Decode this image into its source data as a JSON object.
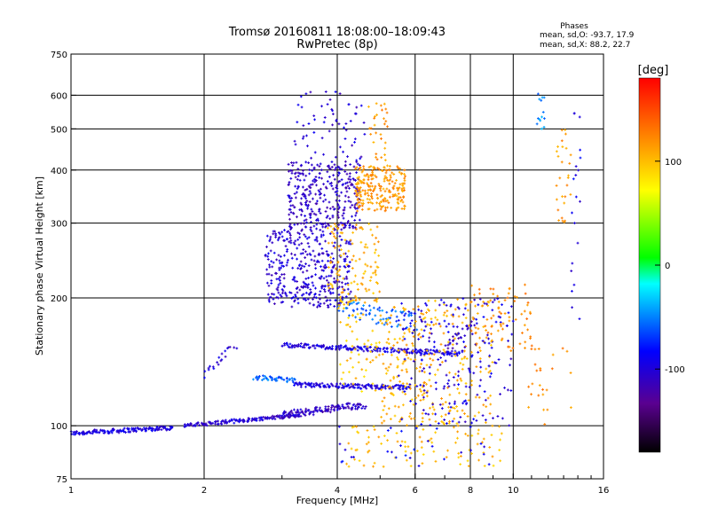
{
  "chart_data": {
    "type": "scatter",
    "title": "Tromsø 20160811 18:08:00–18:09:43",
    "subtitle": "RwPretec (8p)",
    "phases_title": "Phases",
    "phases_lines": [
      "mean, sd,O: -93.7, 17.9",
      "mean, sd,X:  88.2, 22.7"
    ],
    "xlabel": "Frequency [MHz]",
    "ylabel": "Stationary phase Virtual Height [km]",
    "xscale": "log",
    "yscale": "log",
    "xlim": [
      1,
      16
    ],
    "ylim": [
      75,
      750
    ],
    "xticks": [
      1,
      2,
      4,
      6,
      8,
      10,
      16
    ],
    "xtick_labels": [
      "1",
      "2",
      "4",
      "6",
      "8",
      "10",
      "16"
    ],
    "yticks": [
      75,
      100,
      200,
      300,
      400,
      500,
      600,
      750
    ],
    "ytick_labels": [
      "75",
      "100",
      "200",
      "300",
      "400",
      "500",
      "600",
      "750"
    ],
    "x_gridlines": [
      2,
      4,
      6,
      8,
      10
    ],
    "y_gridlines": [
      100,
      200,
      300,
      400,
      500,
      600
    ],
    "grid": true,
    "colorbar": {
      "label": "[deg]",
      "range": [
        -180,
        180
      ],
      "ticks": [
        100,
        0,
        -100
      ],
      "tick_labels": [
        "100",
        "0",
        "-100"
      ],
      "colors": [
        "#000000",
        "#5a0090",
        "#0000ff",
        "#00ffff",
        "#00ff00",
        "#ffff00",
        "#ff8000",
        "#ff0000"
      ]
    },
    "traces": [
      {
        "f_start": 1.0,
        "f_end": 1.7,
        "h_start": 96,
        "h_end": 99,
        "phase": -100,
        "n": 140,
        "spread": 0.012
      },
      {
        "f_start": 1.8,
        "f_end": 3.3,
        "h_start": 100,
        "h_end": 106,
        "phase": -105,
        "n": 140,
        "spread": 0.01
      },
      {
        "f_start": 3.0,
        "f_end": 4.6,
        "h_start": 106,
        "h_end": 112,
        "phase": -110,
        "n": 120,
        "spread": 0.02
      },
      {
        "f_start": 2.0,
        "f_end": 2.35,
        "h_start": 132,
        "h_end": 155,
        "phase": -100,
        "n": 20,
        "spread": 0.02
      },
      {
        "f_start": 2.6,
        "f_end": 3.2,
        "h_start": 130,
        "h_end": 128,
        "phase": -60,
        "n": 45,
        "spread": 0.012
      },
      {
        "f_start": 3.2,
        "f_end": 5.8,
        "h_start": 125,
        "h_end": 123,
        "phase": -100,
        "n": 150,
        "spread": 0.012
      },
      {
        "f_start": 3.0,
        "f_end": 7.6,
        "h_start": 155,
        "h_end": 148,
        "phase": -100,
        "n": 200,
        "spread": 0.012
      },
      {
        "f_start": 7.0,
        "f_end": 8.1,
        "h_start": 150,
        "h_end": 175,
        "phase": -110,
        "n": 30,
        "spread": 0.03
      },
      {
        "f_start": 4.0,
        "f_end": 6.0,
        "h_start": 190,
        "h_end": 175,
        "phase": -60,
        "n": 70,
        "spread": 0.05
      }
    ],
    "clusters": [
      {
        "f_min": 2.75,
        "f_max": 4.3,
        "h_min": 190,
        "h_max": 290,
        "phase": -105,
        "n": 380
      },
      {
        "f_min": 3.1,
        "f_max": 4.5,
        "h_min": 290,
        "h_max": 420,
        "phase": -110,
        "n": 320
      },
      {
        "f_min": 3.2,
        "f_max": 4.7,
        "h_min": 420,
        "h_max": 620,
        "phase": -105,
        "n": 60
      },
      {
        "f_min": 4.4,
        "f_max": 5.7,
        "h_min": 320,
        "h_max": 410,
        "phase": 115,
        "n": 240
      },
      {
        "f_min": 3.8,
        "f_max": 5.0,
        "h_min": 195,
        "h_max": 300,
        "phase": 105,
        "n": 120
      },
      {
        "f_min": 4.7,
        "f_max": 5.2,
        "h_min": 420,
        "h_max": 580,
        "phase": 115,
        "n": 30
      },
      {
        "f_min": 4.0,
        "f_max": 5.0,
        "h_min": 120,
        "h_max": 200,
        "phase": 95,
        "n": 60
      },
      {
        "f_min": 5.0,
        "f_max": 9.0,
        "h_min": 100,
        "h_max": 200,
        "phase": 105,
        "n": 300
      },
      {
        "f_min": 5.5,
        "f_max": 10.0,
        "h_min": 100,
        "h_max": 200,
        "phase": -100,
        "n": 200
      },
      {
        "f_min": 8.0,
        "f_max": 11.0,
        "h_min": 150,
        "h_max": 215,
        "phase": 120,
        "n": 70
      },
      {
        "f_min": 4.2,
        "f_max": 9.5,
        "h_min": 80,
        "h_max": 100,
        "phase": 100,
        "n": 90
      },
      {
        "f_min": 4.0,
        "f_max": 9.0,
        "h_min": 80,
        "h_max": 100,
        "phase": -90,
        "n": 30
      },
      {
        "f_min": 11.3,
        "f_max": 11.8,
        "h_min": 500,
        "h_max": 620,
        "phase": -50,
        "n": 14
      },
      {
        "f_min": 12.5,
        "f_max": 13.5,
        "h_min": 300,
        "h_max": 500,
        "phase": 115,
        "n": 28
      },
      {
        "f_min": 13.5,
        "f_max": 14.2,
        "h_min": 160,
        "h_max": 550,
        "phase": -95,
        "n": 20
      },
      {
        "f_min": 10.5,
        "f_max": 14.0,
        "h_min": 100,
        "h_max": 160,
        "phase": 120,
        "n": 25
      }
    ]
  }
}
